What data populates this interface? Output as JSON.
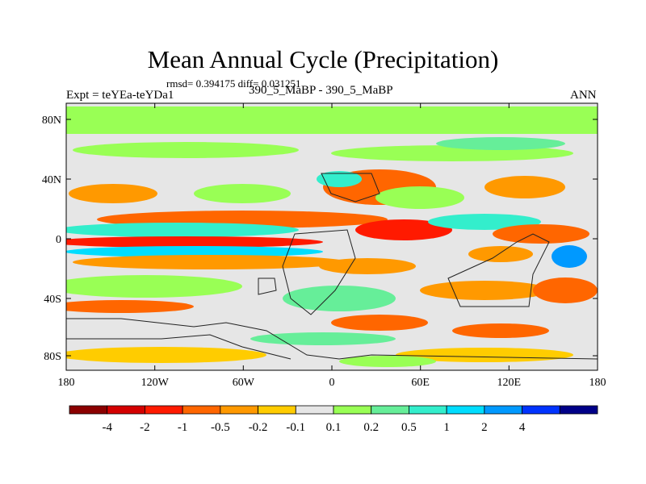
{
  "title": "Mean Annual Cycle (Precipitation)",
  "stats": "rmsd= 0.394175 diff= 0.031251",
  "expt": "Expt = teYEa-teYDa1",
  "center_label": "390_5_MaBP - 390_5_MaBP",
  "season": "ANN",
  "lat_labels": [
    "80N",
    "40N",
    "0",
    "40S",
    "80S"
  ],
  "lon_labels": [
    "180",
    "120W",
    "60W",
    "0",
    "60E",
    "120E",
    "180"
  ],
  "colorbar": {
    "colors": [
      "#8b0000",
      "#d40000",
      "#ff1a00",
      "#ff6600",
      "#ff9900",
      "#ffcc00",
      "#e6e6e6",
      "#99ff55",
      "#66ee99",
      "#33eecc",
      "#00ddff",
      "#0099ff",
      "#0033ff",
      "#000088"
    ],
    "labels": [
      "-4",
      "-2",
      "-1",
      "-0.5",
      "-0.2",
      "-0.1",
      "0.1",
      "0.2",
      "0.5",
      "1",
      "2",
      "4"
    ]
  }
}
